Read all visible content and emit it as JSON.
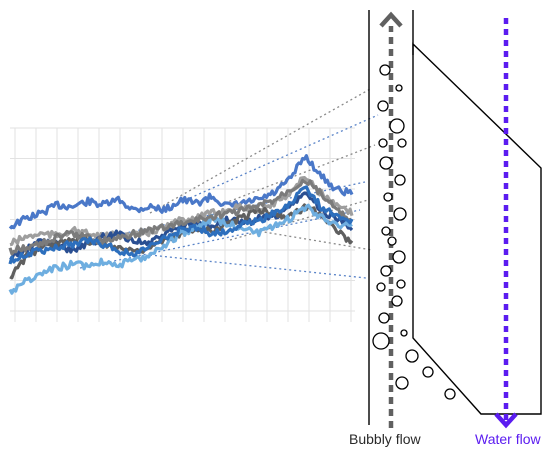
{
  "labels": {
    "bubbly_flow": "Bubbly flow",
    "water_flow": "Water flow"
  },
  "colors": {
    "background": "#ffffff",
    "grid": "#e2e2e2",
    "bubbly_arrow": "#606060",
    "water_arrow": "#5b1cf0",
    "outline": "#000000",
    "series": [
      "#4a78c8",
      "#9e9e9e",
      "#2a4f92",
      "#5f5f5f",
      "#6eaee0",
      "#7b7b7b",
      "#2d6fbd"
    ]
  },
  "chart_data": {
    "type": "line",
    "title": "",
    "xlabel": "",
    "ylabel": "",
    "grid": true,
    "legend": "none",
    "series_count": 7,
    "note_level": "relative signal level 0-1 read against the gridlines (no axis values printed)",
    "series": [
      {
        "values": [
          0.5,
          0.55,
          0.58,
          0.63,
          0.62,
          0.65,
          0.63,
          0.66,
          0.6,
          0.62,
          0.6,
          0.66,
          0.64,
          0.68,
          0.62,
          0.64,
          0.66,
          0.7,
          0.78,
          0.92,
          0.8,
          0.72,
          0.7
        ]
      },
      {
        "values": [
          0.4,
          0.44,
          0.46,
          0.45,
          0.48,
          0.46,
          0.44,
          0.46,
          0.45,
          0.47,
          0.5,
          0.54,
          0.56,
          0.58,
          0.6,
          0.62,
          0.6,
          0.64,
          0.7,
          0.8,
          0.7,
          0.62,
          0.58
        ]
      },
      {
        "values": [
          0.32,
          0.36,
          0.42,
          0.4,
          0.36,
          0.4,
          0.44,
          0.46,
          0.42,
          0.4,
          0.46,
          0.5,
          0.52,
          0.5,
          0.54,
          0.52,
          0.55,
          0.56,
          0.62,
          0.7,
          0.6,
          0.55,
          0.5
        ]
      },
      {
        "values": [
          0.2,
          0.32,
          0.38,
          0.4,
          0.44,
          0.42,
          0.4,
          0.38,
          0.36,
          0.38,
          0.42,
          0.46,
          0.5,
          0.48,
          0.52,
          0.56,
          0.6,
          0.58,
          0.56,
          0.62,
          0.58,
          0.48,
          0.4
        ]
      },
      {
        "values": [
          0.12,
          0.18,
          0.22,
          0.26,
          0.28,
          0.27,
          0.3,
          0.28,
          0.3,
          0.34,
          0.4,
          0.46,
          0.5,
          0.55,
          0.52,
          0.5,
          0.46,
          0.5,
          0.55,
          0.62,
          0.56,
          0.52,
          0.5
        ]
      },
      {
        "values": [
          0.36,
          0.38,
          0.4,
          0.44,
          0.46,
          0.44,
          0.42,
          0.44,
          0.46,
          0.48,
          0.5,
          0.52,
          0.54,
          0.56,
          0.58,
          0.6,
          0.62,
          0.66,
          0.72,
          0.78,
          0.7,
          0.6,
          0.52
        ]
      },
      {
        "values": [
          0.3,
          0.34,
          0.36,
          0.38,
          0.4,
          0.42,
          0.4,
          0.36,
          0.34,
          0.38,
          0.44,
          0.48,
          0.5,
          0.46,
          0.48,
          0.52,
          0.54,
          0.58,
          0.64,
          0.74,
          0.62,
          0.56,
          0.54
        ]
      }
    ]
  }
}
